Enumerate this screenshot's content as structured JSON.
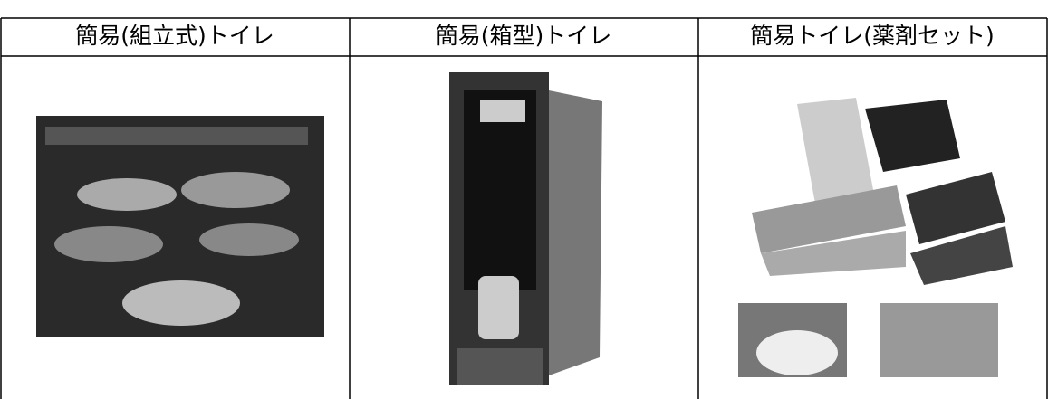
{
  "table": {
    "headers": [
      "簡易(組立式)トイレ",
      "簡易(箱型)トイレ",
      "簡易トイレ(薬剤セット)"
    ]
  }
}
